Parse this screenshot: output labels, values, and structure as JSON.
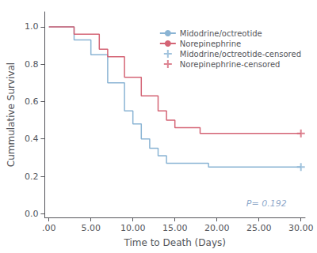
{
  "chart_data": {
    "type": "line",
    "xlabel": "Time to Death (Days)",
    "ylabel": "Cummulative Survival",
    "xlim": [
      -0.5,
      30.5
    ],
    "ylim": [
      -0.02,
      1.08
    ],
    "xticks": [
      {
        "value": 0.0,
        "label": ".00"
      },
      {
        "value": 5.0,
        "label": "5.00"
      },
      {
        "value": 10.0,
        "label": "10.00"
      },
      {
        "value": 15.0,
        "label": "15.00"
      },
      {
        "value": 20.0,
        "label": "20.00"
      },
      {
        "value": 25.0,
        "label": "25.00"
      },
      {
        "value": 30.0,
        "label": "30.00"
      }
    ],
    "yticks": [
      {
        "value": 0.0,
        "label": "0.0"
      },
      0.2,
      0.4,
      0.6,
      0.8,
      {
        "value": 1.0,
        "label": "1.0"
      }
    ],
    "series": [
      {
        "name": "Midodrine/octreotide",
        "type": "line",
        "color": "#8ab4d4",
        "x": [
          0,
          3,
          3,
          5,
          5,
          7,
          7,
          9,
          9,
          10,
          10,
          11,
          11,
          12,
          12,
          13,
          13,
          14,
          14,
          15,
          15,
          17,
          17,
          19,
          19,
          25,
          25,
          30
        ],
        "values": [
          1.0,
          1.0,
          0.93,
          0.93,
          0.85,
          0.85,
          0.7,
          0.7,
          0.55,
          0.55,
          0.48,
          0.48,
          0.4,
          0.4,
          0.35,
          0.35,
          0.31,
          0.31,
          0.27,
          0.27,
          0.27,
          0.27,
          0.27,
          0.27,
          0.25,
          0.25,
          0.25,
          0.25
        ]
      },
      {
        "name": "Norepinephrine",
        "type": "line",
        "color": "#d46475",
        "x": [
          0,
          3,
          3,
          6,
          6,
          7,
          7,
          9,
          9,
          11,
          11,
          13,
          13,
          14,
          14,
          15,
          15,
          18,
          18,
          19,
          19,
          30
        ],
        "values": [
          1.0,
          1.0,
          0.96,
          0.96,
          0.88,
          0.88,
          0.84,
          0.84,
          0.73,
          0.73,
          0.63,
          0.63,
          0.55,
          0.55,
          0.5,
          0.5,
          0.46,
          0.46,
          0.43,
          0.43,
          0.43,
          0.43
        ]
      },
      {
        "name": "Midodrine/octreotide-censored",
        "type": "scatter",
        "marker": "plus",
        "color": "#8ab4d4",
        "x": [
          30
        ],
        "values": [
          0.25
        ]
      },
      {
        "name": "Norepinephrine-censored",
        "type": "scatter",
        "marker": "plus",
        "color": "#d46475",
        "x": [
          30
        ],
        "values": [
          0.43
        ]
      }
    ],
    "annotations": [
      {
        "text": "P= 0.192",
        "x": 23.5,
        "y": 0.055
      }
    ],
    "legend": "upper right",
    "grid": false
  }
}
